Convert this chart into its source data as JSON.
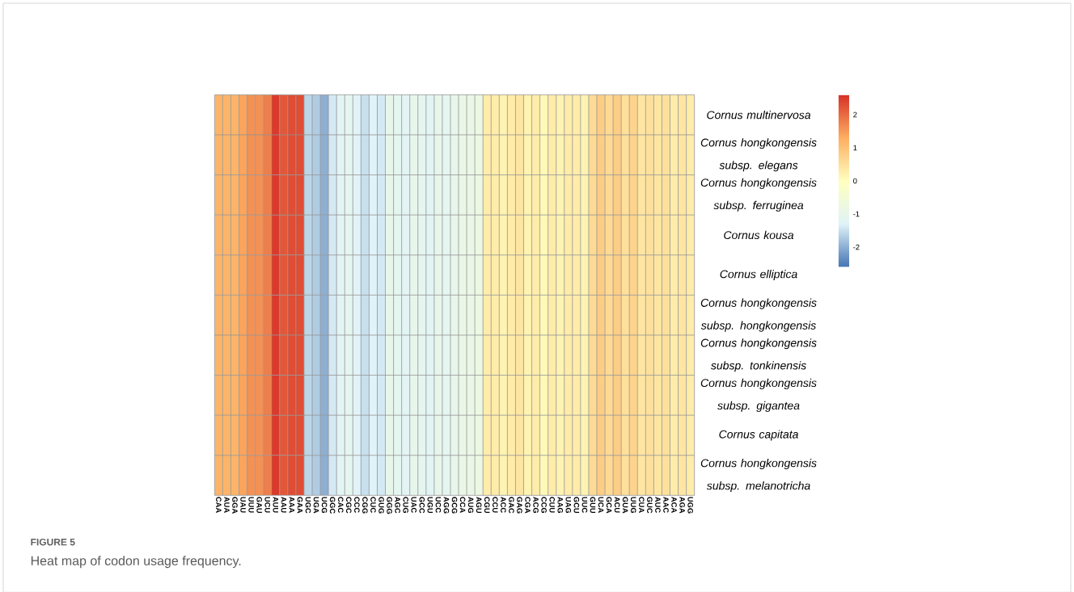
{
  "chart_data": {
    "type": "heatmap",
    "categories": [
      "CAA",
      "AUA",
      "GGA",
      "UAU",
      "UUU",
      "GAU",
      "UCU",
      "AUU",
      "AAU",
      "AAA",
      "GAA",
      "UGC",
      "UGA",
      "UCG",
      "GGC",
      "CAC",
      "CGC",
      "CCC",
      "CGG",
      "CUC",
      "GUG",
      "GGG",
      "AGC",
      "CUG",
      "UAC",
      "GCC",
      "UGU",
      "UCC",
      "AGG",
      "GCG",
      "CCA",
      "AUG",
      "AGU",
      "CGU",
      "CCU",
      "ACC",
      "GAC",
      "GAG",
      "CGA",
      "ACG",
      "CCG",
      "CUU",
      "AAG",
      "UAG",
      "GCU",
      "UUC",
      "GUU",
      "UCA",
      "GCA",
      "ACU",
      "GUA",
      "UUG",
      "CUA",
      "GUC",
      "AUC",
      "AAC",
      "ACA",
      "AGA",
      "UGG"
    ],
    "y_categories": [
      "Cornus multinervosa",
      "Cornus hongkongensis subsp. elegans",
      "Cornus hongkongensis subsp. ferruginea",
      "Cornus kousa",
      "Cornus elliptica",
      "Cornus hongkongensis subsp. hongkongensis",
      "Cornus hongkongensis subsp. tonkinensis",
      "Cornus hongkongensis subsp. gigantea",
      "Cornus capitata",
      "Cornus hongkongensis subsp. melanotricha"
    ],
    "cells": [
      [
        1.2,
        1.2,
        1.2,
        1.4,
        1.6,
        1.6,
        1.8,
        2.5,
        2.2,
        2.3,
        2.3,
        -1.6,
        -1.7,
        -2.0,
        -1.4,
        -1.2,
        -1.1,
        -1.3,
        -1.5,
        -1.3,
        -1.4,
        -1.0,
        -1.1,
        -1.2,
        -1.0,
        -1.1,
        -1.2,
        -1.0,
        -1.1,
        -1.0,
        -0.9,
        -0.9,
        -0.8,
        0.3,
        0.3,
        0.2,
        0.3,
        0.4,
        0.2,
        0.3,
        0.1,
        0.3,
        0.2,
        0.3,
        0.3,
        0.2,
        0.6,
        0.8,
        0.6,
        0.8,
        0.5,
        0.7,
        0.4,
        0.5,
        0.4,
        0.5,
        0.3,
        0.4,
        0.3
      ],
      [
        1.2,
        1.2,
        1.2,
        1.4,
        1.6,
        1.6,
        1.8,
        2.5,
        2.2,
        2.3,
        2.3,
        -1.6,
        -1.7,
        -2.0,
        -1.4,
        -1.2,
        -1.1,
        -1.3,
        -1.5,
        -1.3,
        -1.4,
        -1.0,
        -1.1,
        -1.2,
        -1.0,
        -1.1,
        -1.2,
        -1.0,
        -1.1,
        -1.0,
        -0.9,
        -0.9,
        -0.8,
        0.3,
        0.3,
        0.2,
        0.3,
        0.4,
        0.2,
        0.3,
        0.1,
        0.3,
        0.2,
        0.3,
        0.3,
        0.2,
        0.6,
        0.8,
        0.6,
        0.8,
        0.5,
        0.7,
        0.4,
        0.5,
        0.4,
        0.5,
        0.3,
        0.4,
        0.3
      ],
      [
        1.2,
        1.2,
        1.2,
        1.4,
        1.6,
        1.6,
        1.8,
        2.5,
        2.2,
        2.3,
        2.3,
        -1.6,
        -1.7,
        -2.0,
        -1.4,
        -1.2,
        -1.1,
        -1.3,
        -1.5,
        -1.3,
        -1.4,
        -1.0,
        -1.1,
        -1.2,
        -1.0,
        -1.1,
        -1.2,
        -1.0,
        -1.1,
        -1.0,
        -0.9,
        -0.9,
        -0.8,
        0.3,
        0.3,
        0.2,
        0.3,
        0.4,
        0.2,
        0.3,
        0.1,
        0.3,
        0.2,
        0.3,
        0.3,
        0.2,
        0.6,
        0.8,
        0.6,
        0.8,
        0.5,
        0.7,
        0.4,
        0.5,
        0.4,
        0.5,
        0.3,
        0.4,
        0.3
      ],
      [
        1.2,
        1.2,
        1.2,
        1.4,
        1.6,
        1.6,
        1.8,
        2.5,
        2.2,
        2.3,
        2.3,
        -1.6,
        -1.7,
        -2.0,
        -1.4,
        -1.2,
        -1.1,
        -1.3,
        -1.5,
        -1.3,
        -1.4,
        -1.0,
        -1.1,
        -1.2,
        -1.0,
        -1.1,
        -1.2,
        -1.0,
        -1.1,
        -1.0,
        -0.9,
        -0.9,
        -0.8,
        0.3,
        0.3,
        0.2,
        0.3,
        0.4,
        0.2,
        0.3,
        0.1,
        0.3,
        0.2,
        0.3,
        0.3,
        0.2,
        0.6,
        0.8,
        0.6,
        0.8,
        0.5,
        0.7,
        0.4,
        0.5,
        0.4,
        0.5,
        0.3,
        0.4,
        0.3
      ],
      [
        1.2,
        1.2,
        1.2,
        1.4,
        1.6,
        1.6,
        1.8,
        2.5,
        2.2,
        2.3,
        2.3,
        -1.6,
        -1.7,
        -2.0,
        -1.4,
        -1.2,
        -1.1,
        -1.3,
        -1.5,
        -1.3,
        -1.4,
        -1.0,
        -1.1,
        -1.2,
        -1.0,
        -1.1,
        -1.2,
        -1.0,
        -1.1,
        -1.0,
        -0.9,
        -0.9,
        -0.8,
        0.3,
        0.3,
        0.2,
        0.3,
        0.4,
        0.2,
        0.3,
        0.1,
        0.3,
        0.2,
        0.3,
        0.3,
        0.2,
        0.6,
        0.8,
        0.6,
        0.8,
        0.5,
        0.7,
        0.4,
        0.5,
        0.4,
        0.5,
        0.3,
        0.4,
        0.3
      ],
      [
        1.2,
        1.2,
        1.2,
        1.4,
        1.6,
        1.6,
        1.8,
        2.5,
        2.2,
        2.3,
        2.3,
        -1.6,
        -1.7,
        -2.0,
        -1.4,
        -1.2,
        -1.1,
        -1.3,
        -1.5,
        -1.3,
        -1.4,
        -1.0,
        -1.1,
        -1.2,
        -1.0,
        -1.1,
        -1.2,
        -1.0,
        -1.1,
        -1.0,
        -0.9,
        -0.9,
        -0.8,
        0.3,
        0.3,
        0.2,
        0.3,
        0.4,
        0.2,
        0.3,
        0.1,
        0.3,
        0.2,
        0.3,
        0.3,
        0.2,
        0.6,
        0.8,
        0.6,
        0.8,
        0.5,
        0.7,
        0.4,
        0.5,
        0.4,
        0.5,
        0.3,
        0.4,
        0.3
      ],
      [
        1.2,
        1.2,
        1.2,
        1.4,
        1.6,
        1.6,
        1.8,
        2.5,
        2.2,
        2.3,
        2.3,
        -1.6,
        -1.7,
        -2.0,
        -1.4,
        -1.2,
        -1.1,
        -1.3,
        -1.5,
        -1.3,
        -1.4,
        -1.0,
        -1.1,
        -1.2,
        -1.0,
        -1.1,
        -1.2,
        -1.0,
        -1.1,
        -1.0,
        -0.9,
        -0.9,
        -0.8,
        0.3,
        0.3,
        0.2,
        0.3,
        0.4,
        0.2,
        0.3,
        0.1,
        0.3,
        0.2,
        0.3,
        0.3,
        0.2,
        0.6,
        0.8,
        0.6,
        0.8,
        0.5,
        0.7,
        0.4,
        0.5,
        0.4,
        0.5,
        0.3,
        0.4,
        0.3
      ],
      [
        1.2,
        1.2,
        1.2,
        1.4,
        1.6,
        1.6,
        1.8,
        2.5,
        2.2,
        2.3,
        2.3,
        -1.6,
        -1.7,
        -2.0,
        -1.4,
        -1.2,
        -1.1,
        -1.3,
        -1.5,
        -1.3,
        -1.4,
        -1.0,
        -1.1,
        -1.2,
        -1.0,
        -1.1,
        -1.2,
        -1.0,
        -1.1,
        -1.0,
        -0.9,
        -0.9,
        -0.8,
        0.3,
        0.3,
        0.2,
        0.3,
        0.4,
        0.2,
        0.3,
        0.1,
        0.3,
        0.2,
        0.3,
        0.3,
        0.2,
        0.6,
        0.8,
        0.6,
        0.8,
        0.5,
        0.7,
        0.4,
        0.5,
        0.4,
        0.5,
        0.3,
        0.4,
        0.3
      ],
      [
        1.2,
        1.2,
        1.2,
        1.4,
        1.6,
        1.6,
        1.8,
        2.5,
        2.2,
        2.3,
        2.3,
        -1.6,
        -1.7,
        -2.0,
        -1.4,
        -1.2,
        -1.1,
        -1.3,
        -1.5,
        -1.3,
        -1.4,
        -1.0,
        -1.1,
        -1.2,
        -1.0,
        -1.1,
        -1.2,
        -1.0,
        -1.1,
        -1.0,
        -0.9,
        -0.9,
        -0.8,
        0.3,
        0.3,
        0.2,
        0.3,
        0.4,
        0.2,
        0.3,
        0.1,
        0.3,
        0.2,
        0.3,
        0.3,
        0.2,
        0.6,
        0.8,
        0.6,
        0.8,
        0.5,
        0.7,
        0.4,
        0.5,
        0.4,
        0.5,
        0.3,
        0.4,
        0.3
      ],
      [
        1.2,
        1.2,
        1.2,
        1.4,
        1.6,
        1.6,
        1.8,
        2.5,
        2.2,
        2.3,
        2.3,
        -1.6,
        -1.7,
        -2.0,
        -1.4,
        -1.2,
        -1.1,
        -1.3,
        -1.5,
        -1.3,
        -1.4,
        -1.0,
        -1.1,
        -1.2,
        -1.0,
        -1.1,
        -1.2,
        -1.0,
        -1.1,
        -1.0,
        -0.9,
        -0.9,
        -0.8,
        0.3,
        0.3,
        0.2,
        0.3,
        0.4,
        0.2,
        0.3,
        0.1,
        0.3,
        0.2,
        0.3,
        0.3,
        0.2,
        0.6,
        0.8,
        0.6,
        0.8,
        0.5,
        0.7,
        0.4,
        0.5,
        0.4,
        0.5,
        0.3,
        0.4,
        0.3
      ]
    ],
    "clim": [
      -2.6,
      2.6
    ],
    "cticks": [
      -2,
      -1,
      0,
      1,
      2
    ],
    "annotations": [
      "FIGURE 5",
      "Heat map of codon usage frequency."
    ]
  }
}
